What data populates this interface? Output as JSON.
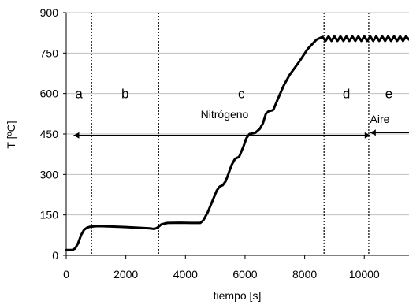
{
  "chart_data": {
    "type": "line",
    "title": "",
    "xlabel": "tiempo [s]",
    "ylabel": "T [ºC]",
    "xlim": [
      0,
      11500
    ],
    "ylim": [
      0,
      900
    ],
    "xticks": [
      0,
      2000,
      4000,
      6000,
      8000,
      10000
    ],
    "yticks": [
      0,
      150,
      300,
      450,
      600,
      750,
      900
    ],
    "grid": "horizontal",
    "line_color": "#000000",
    "series": [
      {
        "x": [
          0,
          200,
          300,
          400,
          500,
          600,
          700,
          800,
          1000,
          1200,
          1500,
          2000,
          2500,
          2800,
          2950,
          3050,
          3200,
          3400,
          3800,
          4200,
          4500,
          4600,
          4750,
          4900,
          5050,
          5150,
          5250,
          5350,
          5450,
          5550,
          5650,
          5700,
          5800,
          5950,
          6050,
          6150,
          6250,
          6350,
          6500,
          6600,
          6700,
          6800,
          6900,
          6950,
          7100,
          7300,
          7500,
          7800,
          8100,
          8400,
          8600,
          8700,
          8800,
          8900,
          9000,
          9100,
          9200,
          9300,
          9400,
          9500,
          9600,
          9700,
          9800,
          9900,
          10000,
          10100,
          10200,
          10300,
          10400,
          10500,
          10600,
          10700,
          10800,
          10900,
          11000,
          11100,
          11200,
          11300,
          11400,
          11500
        ],
        "y": [
          20,
          20,
          25,
          45,
          75,
          95,
          103,
          106,
          108,
          108,
          107,
          105,
          102,
          100,
          98,
          102,
          115,
          120,
          121,
          120,
          120,
          130,
          160,
          200,
          240,
          255,
          260,
          275,
          305,
          335,
          355,
          360,
          365,
          405,
          435,
          450,
          452,
          455,
          470,
          490,
          525,
          535,
          537,
          540,
          580,
          630,
          670,
          715,
          765,
          800,
          810,
          795,
          812,
          795,
          812,
          795,
          812,
          795,
          812,
          795,
          812,
          795,
          812,
          795,
          812,
          795,
          812,
          795,
          812,
          795,
          812,
          795,
          812,
          795,
          812,
          795,
          812,
          795,
          812,
          800
        ]
      }
    ],
    "vlines": [
      850,
      3100,
      8650,
      10150
    ],
    "regions": [
      "a",
      "b",
      "c",
      "d",
      "e"
    ],
    "annotations": {
      "nitrogen": "Nitrógeno",
      "air": "Aire"
    },
    "arrows": [
      {
        "name": "nitrogen",
        "x": [
          250,
          10200
        ],
        "y": 445
      },
      {
        "name": "air",
        "x": [
          10200,
          11500
        ],
        "y": 455
      }
    ]
  }
}
